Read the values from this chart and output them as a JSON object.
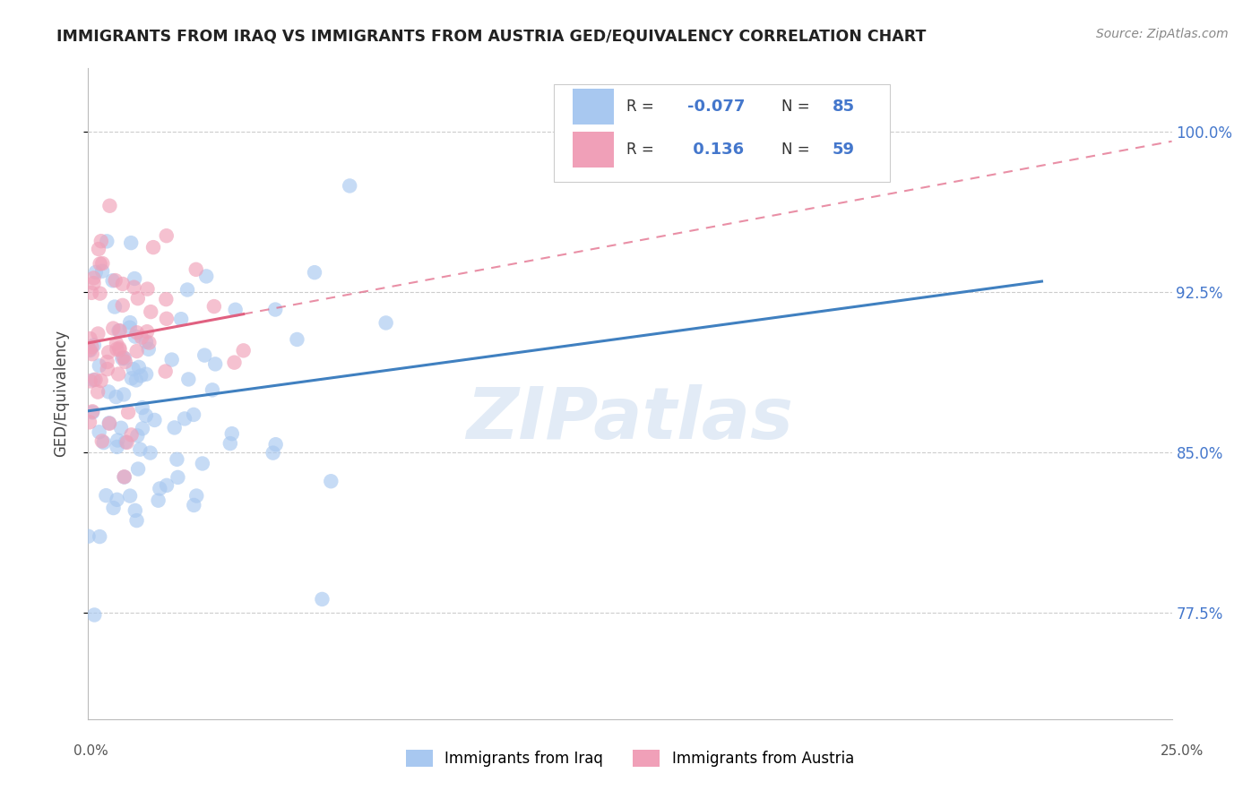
{
  "title": "IMMIGRANTS FROM IRAQ VS IMMIGRANTS FROM AUSTRIA GED/EQUIVALENCY CORRELATION CHART",
  "source": "Source: ZipAtlas.com",
  "ylabel": "GED/Equivalency",
  "yticks": [
    0.775,
    0.85,
    0.925,
    1.0
  ],
  "ytick_labels": [
    "77.5%",
    "85.0%",
    "92.5%",
    "100.0%"
  ],
  "xlim": [
    0.0,
    0.25
  ],
  "ylim": [
    0.725,
    1.03
  ],
  "iraq_R": -0.077,
  "iraq_N": 85,
  "austria_R": 0.136,
  "austria_N": 59,
  "iraq_color": "#A8C8F0",
  "austria_color": "#F0A0B8",
  "iraq_line_color": "#4080C0",
  "austria_line_color": "#E06080",
  "watermark": "ZIPatlas",
  "legend_iraq_R": "R = -0.077",
  "legend_iraq_N": "N = 85",
  "legend_austria_R": "R =  0.136",
  "legend_austria_N": "N = 59"
}
